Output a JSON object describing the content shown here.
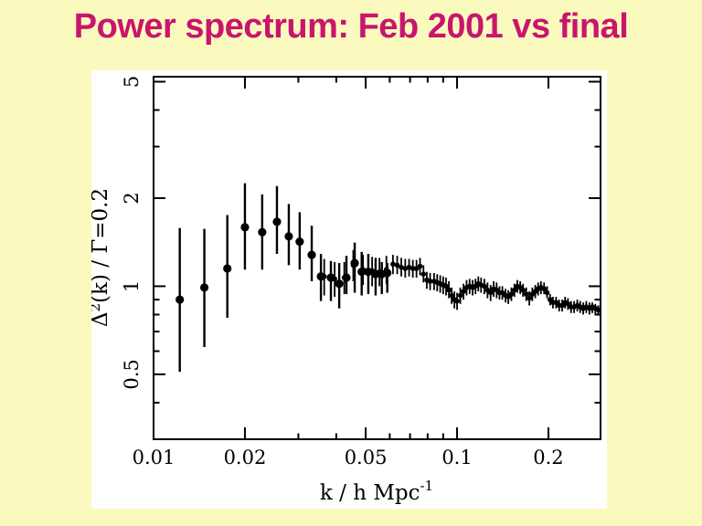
{
  "slide": {
    "title": "Power spectrum: Feb 2001 vs final",
    "title_color": "#C9156D",
    "background_color": "#FAFABE",
    "panel_color": "#FFFFFF"
  },
  "chart_data": {
    "type": "scatter",
    "title": "Power spectrum: Feb 2001 vs final",
    "x_scale": "log",
    "y_scale": "log",
    "xlim": [
      0.01,
      0.297
    ],
    "ylim": [
      0.3,
      5.2
    ],
    "grid": "off",
    "legend": "none",
    "xlabel": {
      "text": "k / h Mpc",
      "superscript": "-1"
    },
    "ylabel": {
      "prefix": "Δ",
      "superscript": "2",
      "suffix": "(k) / Γ=0.2"
    },
    "x_ticks_major": [
      {
        "value": 0.01,
        "label": "0.01"
      },
      {
        "value": 0.02,
        "label": "0.02"
      },
      {
        "value": 0.05,
        "label": "0.05"
      },
      {
        "value": 0.1,
        "label": "0.1"
      },
      {
        "value": 0.2,
        "label": "0.2"
      }
    ],
    "x_ticks_minor": [
      0.03,
      0.04,
      0.06,
      0.07,
      0.08,
      0.09
    ],
    "y_ticks_major": [
      {
        "value": 5,
        "label": "5"
      },
      {
        "value": 2,
        "label": "2"
      },
      {
        "value": 1,
        "label": "1"
      },
      {
        "value": 0.5,
        "label": "0.5"
      }
    ],
    "y_ticks_minor": [
      4,
      3,
      0.9,
      0.8,
      0.7,
      0.6,
      0.4
    ],
    "series": [
      {
        "name": "Feb 2001",
        "marker": "circle",
        "marker_radius": 4.6,
        "bar_width": 2.4,
        "color": "#000000",
        "points_format": [
          "k",
          "value",
          "err_low",
          "err_high"
        ],
        "points": [
          [
            0.0122,
            0.9,
            0.51,
            1.58
          ],
          [
            0.0147,
            0.99,
            0.62,
            1.57
          ],
          [
            0.0175,
            1.15,
            0.78,
            1.75
          ],
          [
            0.02,
            1.59,
            1.14,
            2.25
          ],
          [
            0.0228,
            1.53,
            1.14,
            2.06
          ],
          [
            0.0255,
            1.66,
            1.29,
            2.2
          ],
          [
            0.0279,
            1.48,
            1.18,
            1.91
          ],
          [
            0.0303,
            1.42,
            1.14,
            1.79
          ],
          [
            0.0332,
            1.28,
            1.04,
            1.61
          ],
          [
            0.0356,
            1.08,
            0.89,
            1.29
          ],
          [
            0.0384,
            1.07,
            0.89,
            1.22
          ],
          [
            0.0409,
            1.02,
            0.84,
            1.2
          ],
          [
            0.0432,
            1.07,
            0.94,
            1.27
          ],
          [
            0.046,
            1.2,
            0.95,
            1.41
          ],
          [
            0.0485,
            1.12,
            0.93,
            1.31
          ],
          [
            0.051,
            1.12,
            0.94,
            1.29
          ],
          [
            0.0539,
            1.1,
            0.93,
            1.25
          ],
          [
            0.0565,
            1.1,
            0.94,
            1.21
          ],
          [
            0.0589,
            1.11,
            0.95,
            1.2
          ]
        ]
      },
      {
        "name": "final",
        "marker": "circle",
        "marker_radius": 2.8,
        "bar_width": 1.8,
        "color": "#000000",
        "points_format": [
          "k",
          "value",
          "err_low",
          "err_high"
        ],
        "points": [
          [
            0.0365,
            1.08,
            0.93,
            1.24
          ],
          [
            0.0395,
            1.06,
            0.92,
            1.21
          ],
          [
            0.0425,
            1.07,
            0.94,
            1.21
          ],
          [
            0.0455,
            1.18,
            1.04,
            1.33
          ],
          [
            0.049,
            1.14,
            1.01,
            1.28
          ],
          [
            0.0525,
            1.13,
            1.0,
            1.26
          ],
          [
            0.0555,
            1.12,
            1.0,
            1.25
          ],
          [
            0.0585,
            1.14,
            1.02,
            1.27
          ],
          [
            0.0615,
            1.19,
            1.1,
            1.28
          ],
          [
            0.0635,
            1.18,
            1.1,
            1.27
          ],
          [
            0.0655,
            1.16,
            1.08,
            1.25
          ],
          [
            0.0675,
            1.15,
            1.07,
            1.24
          ],
          [
            0.0695,
            1.16,
            1.08,
            1.24
          ],
          [
            0.0715,
            1.15,
            1.07,
            1.23
          ],
          [
            0.0735,
            1.15,
            1.07,
            1.23
          ],
          [
            0.0755,
            1.17,
            1.09,
            1.25
          ],
          [
            0.0775,
            1.1,
            1.03,
            1.18
          ],
          [
            0.0795,
            1.05,
            0.98,
            1.12
          ],
          [
            0.0815,
            1.04,
            0.97,
            1.11
          ],
          [
            0.084,
            1.04,
            0.97,
            1.11
          ],
          [
            0.086,
            1.03,
            0.96,
            1.1
          ],
          [
            0.088,
            1.02,
            0.95,
            1.09
          ],
          [
            0.09,
            1.01,
            0.94,
            1.08
          ],
          [
            0.092,
            1.0,
            0.93,
            1.07
          ],
          [
            0.094,
            0.97,
            0.91,
            1.04
          ],
          [
            0.096,
            0.93,
            0.87,
            0.99
          ],
          [
            0.098,
            0.9,
            0.84,
            0.96
          ],
          [
            0.1,
            0.89,
            0.83,
            0.95
          ],
          [
            0.1025,
            0.93,
            0.87,
            0.99
          ],
          [
            0.105,
            0.96,
            0.9,
            1.02
          ],
          [
            0.1075,
            0.99,
            0.93,
            1.05
          ],
          [
            0.11,
            1.0,
            0.94,
            1.06
          ],
          [
            0.1125,
            0.99,
            0.93,
            1.05
          ],
          [
            0.115,
            1.0,
            0.94,
            1.06
          ],
          [
            0.1175,
            1.02,
            0.96,
            1.08
          ],
          [
            0.12,
            1.01,
            0.95,
            1.07
          ],
          [
            0.123,
            1.0,
            0.94,
            1.06
          ],
          [
            0.126,
            0.97,
            0.91,
            1.03
          ],
          [
            0.129,
            0.95,
            0.89,
            1.01
          ],
          [
            0.132,
            0.98,
            0.92,
            1.04
          ],
          [
            0.135,
            0.97,
            0.91,
            1.03
          ],
          [
            0.138,
            0.95,
            0.9,
            1.0
          ],
          [
            0.141,
            0.95,
            0.9,
            1.0
          ],
          [
            0.1445,
            0.93,
            0.88,
            0.98
          ],
          [
            0.1475,
            0.92,
            0.87,
            0.97
          ],
          [
            0.151,
            0.94,
            0.89,
            0.99
          ],
          [
            0.1545,
            0.97,
            0.92,
            1.02
          ],
          [
            0.158,
            1.0,
            0.95,
            1.05
          ],
          [
            0.1615,
            0.99,
            0.94,
            1.04
          ],
          [
            0.165,
            0.97,
            0.92,
            1.02
          ],
          [
            0.169,
            0.94,
            0.89,
            0.99
          ],
          [
            0.173,
            0.91,
            0.86,
            0.96
          ],
          [
            0.177,
            0.94,
            0.89,
            0.99
          ],
          [
            0.181,
            0.96,
            0.91,
            1.01
          ],
          [
            0.185,
            0.98,
            0.93,
            1.03
          ],
          [
            0.189,
            0.99,
            0.94,
            1.04
          ],
          [
            0.1935,
            0.98,
            0.94,
            1.03
          ],
          [
            0.198,
            0.95,
            0.91,
            1.0
          ],
          [
            0.2025,
            0.9,
            0.86,
            0.94
          ],
          [
            0.207,
            0.88,
            0.84,
            0.92
          ],
          [
            0.212,
            0.88,
            0.84,
            0.92
          ],
          [
            0.217,
            0.86,
            0.82,
            0.9
          ],
          [
            0.222,
            0.86,
            0.82,
            0.9
          ],
          [
            0.227,
            0.88,
            0.84,
            0.92
          ],
          [
            0.232,
            0.87,
            0.83,
            0.91
          ],
          [
            0.2375,
            0.85,
            0.81,
            0.89
          ],
          [
            0.243,
            0.85,
            0.81,
            0.89
          ],
          [
            0.249,
            0.86,
            0.82,
            0.9
          ],
          [
            0.2545,
            0.85,
            0.81,
            0.89
          ],
          [
            0.2605,
            0.84,
            0.8,
            0.88
          ],
          [
            0.2665,
            0.85,
            0.81,
            0.89
          ],
          [
            0.273,
            0.84,
            0.8,
            0.88
          ],
          [
            0.279,
            0.85,
            0.81,
            0.88
          ],
          [
            0.2855,
            0.84,
            0.8,
            0.87
          ],
          [
            0.292,
            0.83,
            0.8,
            0.86
          ]
        ]
      }
    ]
  }
}
